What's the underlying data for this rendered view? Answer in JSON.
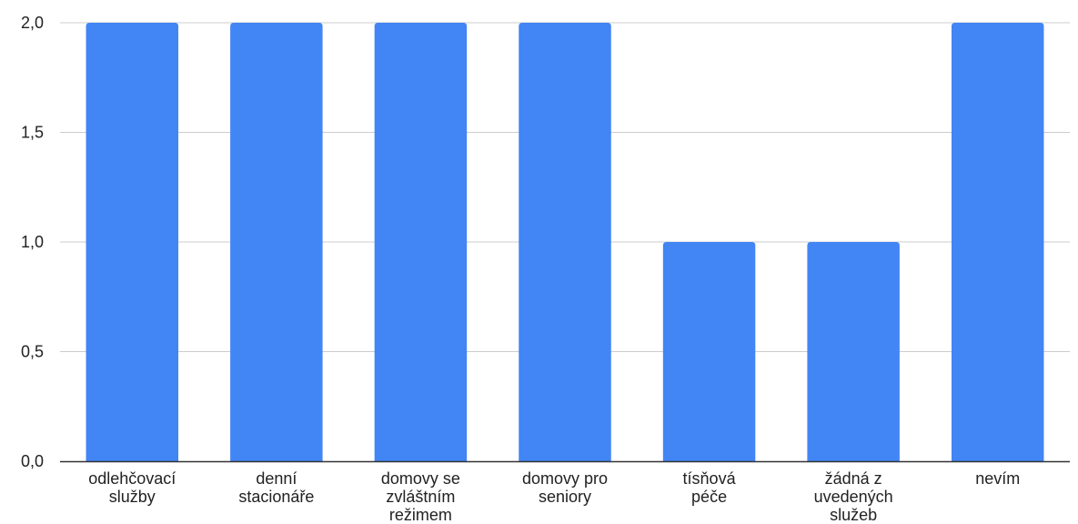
{
  "chart_data": {
    "type": "bar",
    "categories": [
      [
        "odlehčovací",
        "služby"
      ],
      [
        "denní",
        "stacionáře"
      ],
      [
        "domovy se",
        "zvláštním",
        "režimem"
      ],
      [
        "domovy pro",
        "seniory"
      ],
      [
        "tísňová",
        "péče"
      ],
      [
        "žádná z",
        "uvedených",
        "služeb"
      ],
      [
        "nevím"
      ]
    ],
    "values": [
      2,
      2,
      2,
      2,
      1,
      1,
      2
    ],
    "yticks": [
      "0,0",
      "0,5",
      "1,0",
      "1,5",
      "2,0"
    ],
    "ylim": [
      0,
      2
    ],
    "grid": true,
    "bar_color": "#4285f4",
    "grid_color": "#cccccc",
    "axis_color": "#333333"
  }
}
